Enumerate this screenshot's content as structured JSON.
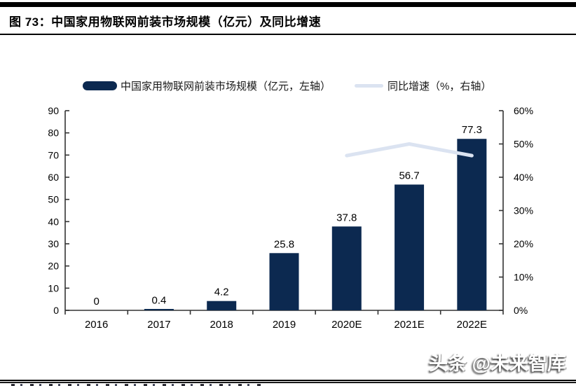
{
  "header": {
    "title": "图 73：中国家用物联网前装市场规模（亿元）及同比增速"
  },
  "legend": [
    {
      "label": "中国家用物联网前装市场规模（亿元，左轴）",
      "marker": "bar-swatch",
      "color": "#0c2950"
    },
    {
      "label": "同比增速（%，右轴）",
      "marker": "line-swatch",
      "color": "#dbe3f1"
    }
  ],
  "chart_data": {
    "type": "bar+line",
    "title": "中国家用物联网前装市场规模（亿元）及同比增速",
    "categories": [
      "2016",
      "2017",
      "2018",
      "2019",
      "2020E",
      "2021E",
      "2022E"
    ],
    "series": [
      {
        "name": "中国家用物联网前装市场规模（亿元，左轴）",
        "type": "bar",
        "axis": "left",
        "color": "#0c2950",
        "values": [
          0,
          0.4,
          4.2,
          25.8,
          37.8,
          56.7,
          77.3
        ],
        "labels": [
          "0",
          "0.4",
          "4.2",
          "25.8",
          "37.8",
          "56.7",
          "77.3"
        ]
      },
      {
        "name": "同比增速（%，右轴）",
        "type": "line",
        "axis": "right",
        "color": "#dbe3f1",
        "values": [
          null,
          null,
          null,
          null,
          46.5,
          50.0,
          46.5
        ]
      }
    ],
    "left_axis": {
      "min": 0,
      "max": 90,
      "step": 10,
      "ticks": [
        "0",
        "10",
        "20",
        "30",
        "40",
        "50",
        "60",
        "70",
        "80",
        "90"
      ]
    },
    "right_axis": {
      "min": 0,
      "max": 60,
      "step": 10,
      "ticks": [
        "0%",
        "10%",
        "20%",
        "30%",
        "40%",
        "50%",
        "60%"
      ]
    },
    "grid": false,
    "legend_position": "top"
  },
  "watermark": {
    "text": "头条 @未来智库"
  }
}
